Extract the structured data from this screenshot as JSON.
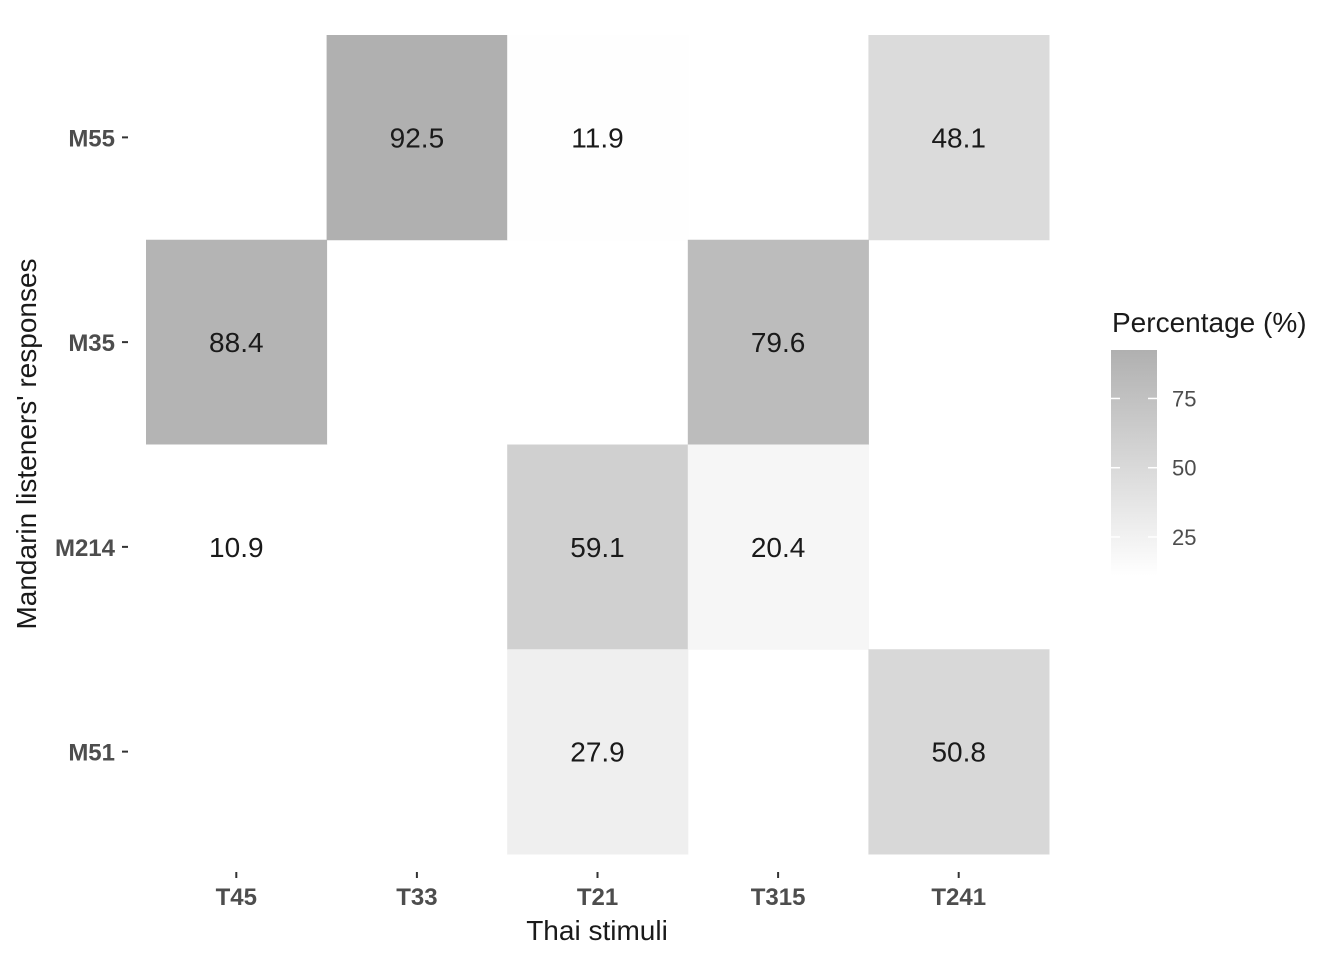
{
  "chart_data": {
    "type": "heatmap",
    "xlabel": "Thai stimuli",
    "ylabel": "Mandarin listeners' responses",
    "x_categories": [
      "T45",
      "T33",
      "T21",
      "T315",
      "T241"
    ],
    "y_categories": [
      "M55",
      "M35",
      "M214",
      "M51"
    ],
    "cells": [
      {
        "x": "T33",
        "y": "M55",
        "value": 92.5,
        "label": "92.5"
      },
      {
        "x": "T21",
        "y": "M55",
        "value": 11.9,
        "label": "11.9"
      },
      {
        "x": "T241",
        "y": "M55",
        "value": 48.1,
        "label": "48.1"
      },
      {
        "x": "T45",
        "y": "M35",
        "value": 88.4,
        "label": "88.4"
      },
      {
        "x": "T315",
        "y": "M35",
        "value": 79.6,
        "label": "79.6"
      },
      {
        "x": "T45",
        "y": "M214",
        "value": 10.9,
        "label": "10.9"
      },
      {
        "x": "T21",
        "y": "M214",
        "value": 59.1,
        "label": "59.1"
      },
      {
        "x": "T315",
        "y": "M214",
        "value": 20.4,
        "label": "20.4"
      },
      {
        "x": "T21",
        "y": "M51",
        "value": 27.9,
        "label": "27.9"
      },
      {
        "x": "T241",
        "y": "M51",
        "value": 50.8,
        "label": "50.8"
      }
    ],
    "legend": {
      "title": "Percentage (%)",
      "ticks": [
        25,
        50,
        75
      ],
      "tick_labels": [
        "25",
        "50",
        "75"
      ],
      "range": [
        10.9,
        92.5
      ],
      "low_color": "#ffffff",
      "high_color": "#b0b0b0",
      "position": "right"
    },
    "grid": false
  }
}
